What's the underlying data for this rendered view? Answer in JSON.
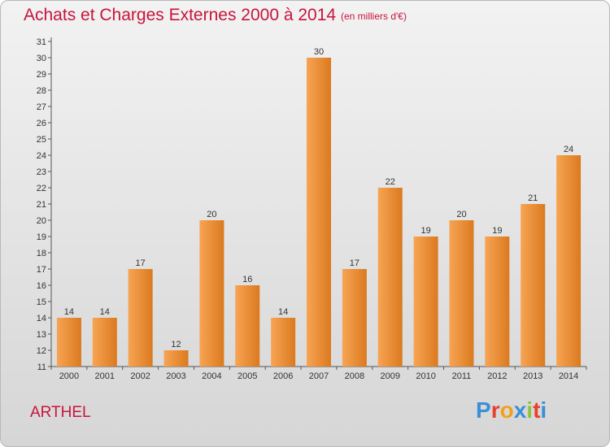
{
  "header": {
    "title": "Achats et Charges Externes 2000 à 2014",
    "subtitle": "(en milliers d'€)"
  },
  "footer": {
    "commune": "ARTHEL",
    "logo_letters": [
      "P",
      "r",
      "o",
      "x",
      "i",
      "t",
      "i"
    ],
    "logo_colors": [
      "#3a8fd6",
      "#e8412b",
      "#f0a21e",
      "#3a8fd6",
      "#8cc63f",
      "#e8412b",
      "#3a8fd6"
    ]
  },
  "chart_data": {
    "type": "bar",
    "categories": [
      "2000",
      "2001",
      "2002",
      "2003",
      "2004",
      "2005",
      "2006",
      "2007",
      "2008",
      "2009",
      "2010",
      "2011",
      "2012",
      "2013",
      "2014"
    ],
    "values": [
      14,
      14,
      17,
      12,
      20,
      16,
      14,
      30,
      17,
      22,
      19,
      20,
      19,
      21,
      24
    ],
    "data_labels": [
      "14",
      "14",
      "17",
      "12",
      "20",
      "16",
      "14",
      "30",
      "17",
      "22",
      "19",
      "20",
      "19",
      "21",
      "24"
    ],
    "title": "Achats et Charges Externes 2000 à 2014",
    "subtitle": "(en milliers d'€)",
    "xlabel": "",
    "ylabel": "",
    "ylim": [
      11,
      31
    ],
    "yticks": [
      11,
      12,
      13,
      14,
      15,
      16,
      17,
      18,
      19,
      20,
      21,
      22,
      23,
      24,
      25,
      26,
      27,
      28,
      29,
      30,
      31
    ],
    "grid": false,
    "colors": {
      "bar_light": "#f7a454",
      "bar_dark": "#db7a1f",
      "accent": "#c8143c"
    }
  }
}
